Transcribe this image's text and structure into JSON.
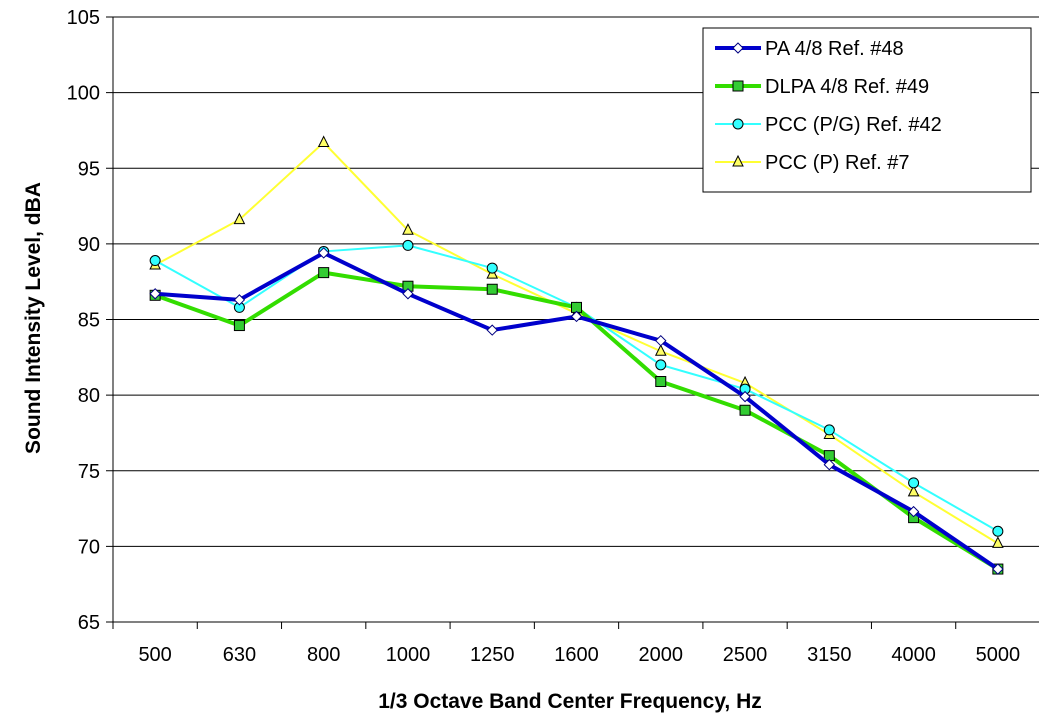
{
  "chart_data": {
    "type": "line",
    "title": "",
    "xlabel": "1/3 Octave Band Center Frequency, Hz",
    "ylabel": "Sound Intensity Level, dBA",
    "categories": [
      "500",
      "630",
      "800",
      "1000",
      "1250",
      "1600",
      "2000",
      "2500",
      "3150",
      "4000",
      "5000"
    ],
    "ylim": [
      65,
      105
    ],
    "yticks": [
      65,
      70,
      75,
      80,
      85,
      90,
      95,
      100,
      105
    ],
    "grid": true,
    "legend_position": "top-right",
    "series": [
      {
        "name": "PA 4/8 Ref. #48",
        "color": "#0000cc",
        "marker": "diamond",
        "marker_fill": "#ffffff",
        "values": [
          86.7,
          86.3,
          89.4,
          86.7,
          84.3,
          85.2,
          83.6,
          79.9,
          75.4,
          72.3,
          68.5
        ]
      },
      {
        "name": "DLPA 4/8 Ref. #49",
        "color": "#33dd00",
        "marker": "square",
        "marker_fill": "#33cc33",
        "values": [
          86.6,
          84.6,
          88.1,
          87.2,
          87.0,
          85.8,
          80.9,
          79.0,
          76.0,
          71.9,
          68.5
        ]
      },
      {
        "name": "PCC (P/G) Ref. #42",
        "color": "#33ffff",
        "marker": "circle",
        "marker_fill": "#33ffff",
        "values": [
          88.9,
          85.8,
          89.5,
          89.9,
          88.4,
          85.8,
          82.0,
          80.4,
          77.7,
          74.2,
          71.0
        ]
      },
      {
        "name": "PCC (P) Ref. #7",
        "color": "#ffff33",
        "marker": "triangle",
        "marker_fill": "#ffff66",
        "values": [
          88.6,
          91.6,
          96.7,
          90.9,
          88.0,
          85.4,
          82.9,
          80.8,
          77.4,
          73.6,
          70.2
        ]
      }
    ]
  }
}
